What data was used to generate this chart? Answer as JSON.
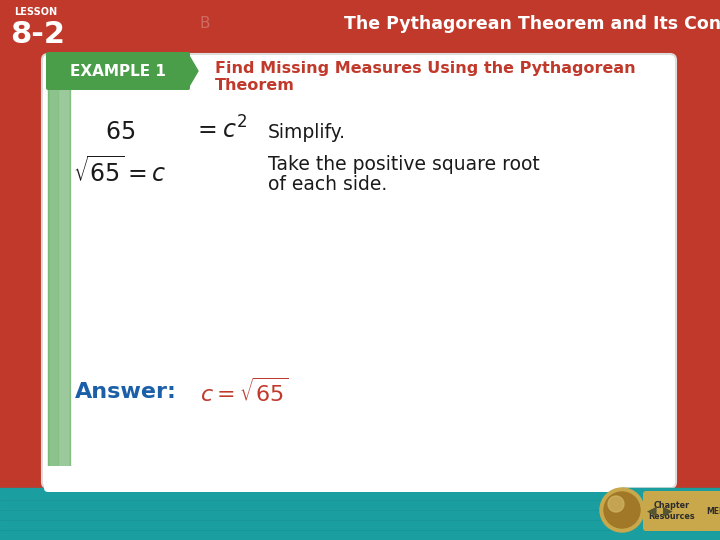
{
  "bg_color": "#c0392b",
  "slide_bg": "#ffffff",
  "header_bg": "#4a9e4a",
  "header_text": "EXAMPLE 1",
  "header_text_color": "#ffffff",
  "title_line1": "Find Missing Measures Using the Pythagorean",
  "title_line2": "Theorem",
  "title_color": "#c0392b",
  "top_bar_color": "#c0392b",
  "top_bar_text": "The Pythagorean Theorem and Its Converse",
  "lesson_label": "LESSON",
  "lesson_number": "8-2",
  "line1_right": "Simplify.",
  "line2_right1": "Take the positive square root",
  "line2_right2": "of each side.",
  "answer_label": "Answer:",
  "answer_color_label": "#1a5fa8",
  "answer_color_formula": "#c0392b",
  "teal_bar_color": "#1a9ea0",
  "nav_btn_color": "#c8a84b",
  "chapter_btn_color": "#c8a84b",
  "text_color_black": "#1a1a1a",
  "left_green_color": "#4a9e4a",
  "left_green2_color": "#6ab86a"
}
